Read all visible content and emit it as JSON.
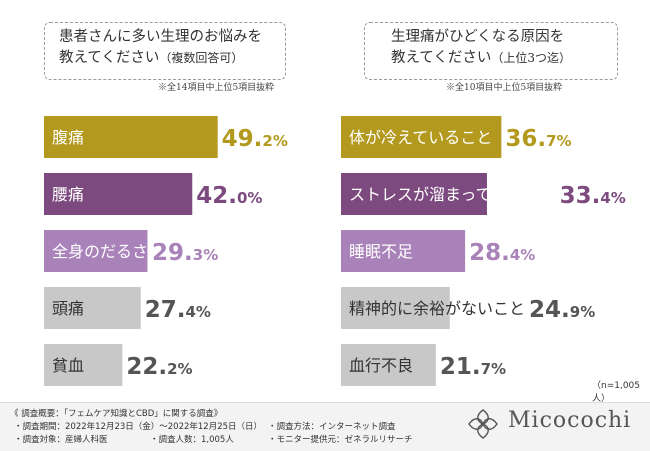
{
  "chart_data": [
    {
      "type": "bar",
      "orientation": "horizontal",
      "title_lines": [
        "患者さんに多い生理のお悩みを",
        "教えてください",
        "（複数回答可）"
      ],
      "note": "※全14項目中上位5項目抜粋",
      "categories": [
        "腹痛",
        "腰痛",
        "全身のだるさ",
        "頭痛",
        "貧血"
      ],
      "values": [
        49.2,
        42.0,
        29.3,
        27.4,
        22.2
      ],
      "value_labels": [
        {
          "int": "49.",
          "dec": "2%"
        },
        {
          "int": "42.",
          "dec": "0%"
        },
        {
          "int": "29.",
          "dec": "3%"
        },
        {
          "int": "27.",
          "dec": "4%"
        },
        {
          "int": "22.",
          "dec": "2%"
        }
      ],
      "colors": [
        "#b39a1f",
        "#7d4a7f",
        "#a882b8",
        "#c8c8c8",
        "#c8c8c8"
      ],
      "value_colors": [
        "#b39a1f",
        "#7d4a7f",
        "#a882b8",
        "#555555",
        "#555555"
      ],
      "label_colors": [
        "#ffffff",
        "#ffffff",
        "#ffffff",
        "#333333",
        "#333333"
      ]
    },
    {
      "type": "bar",
      "orientation": "horizontal",
      "title_lines": [
        "生理痛がひどくなる原因を",
        "教えてください",
        "（上位3つ迄）"
      ],
      "note": "※全10項目中上位5項目抜粋",
      "categories": [
        "体が冷えていること",
        "ストレスが溜まっていること",
        "睡眠不足",
        "精神的に余裕がないこと",
        "血行不良"
      ],
      "values": [
        36.7,
        33.4,
        28.4,
        24.9,
        21.7
      ],
      "value_labels": [
        {
          "int": "36.",
          "dec": "7%"
        },
        {
          "int": "33.",
          "dec": "4%"
        },
        {
          "int": "28.",
          "dec": "4%"
        },
        {
          "int": "24.",
          "dec": "9%"
        },
        {
          "int": "21.",
          "dec": "7%"
        }
      ],
      "colors": [
        "#b39a1f",
        "#7d4a7f",
        "#a882b8",
        "#c8c8c8",
        "#c8c8c8"
      ],
      "value_colors": [
        "#b39a1f",
        "#7d4a7f",
        "#a882b8",
        "#555555",
        "#555555"
      ],
      "label_colors": [
        "#ffffff",
        "#ffffff",
        "#ffffff",
        "#333333",
        "#333333"
      ]
    }
  ],
  "sample_note": "（n=1,005人）",
  "footer": {
    "heading": "《 調査概要：「フェムケア知識とCBD」に関する調査》",
    "period": "・調査期間：2022年12月23日（金）～2022年12月25日（日）",
    "target": "・調査対象：産婦人科医",
    "count": "・調査人数：1,005人",
    "method": "・調査方法：インターネット調査",
    "provider": "・モニター提供元：ゼネラルリサーチ"
  },
  "brand": {
    "name": "Micocochi",
    "logo_icon": "micocochi-logo-icon"
  }
}
